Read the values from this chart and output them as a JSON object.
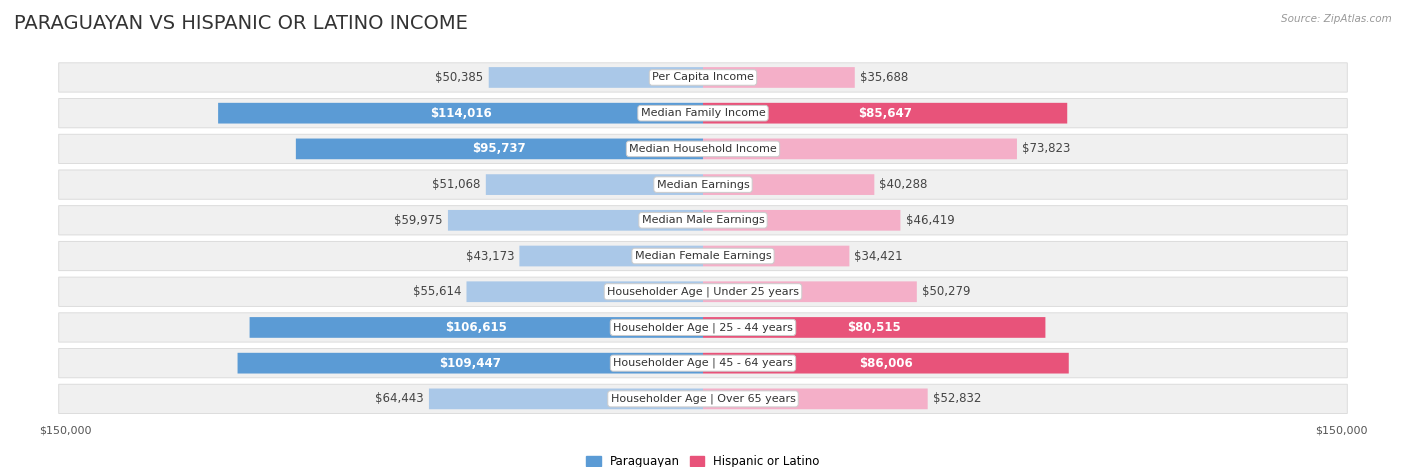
{
  "title": "PARAGUAYAN VS HISPANIC OR LATINO INCOME",
  "source": "Source: ZipAtlas.com",
  "categories": [
    "Per Capita Income",
    "Median Family Income",
    "Median Household Income",
    "Median Earnings",
    "Median Male Earnings",
    "Median Female Earnings",
    "Householder Age | Under 25 years",
    "Householder Age | 25 - 44 years",
    "Householder Age | 45 - 64 years",
    "Householder Age | Over 65 years"
  ],
  "paraguayan_values": [
    50385,
    114016,
    95737,
    51068,
    59975,
    43173,
    55614,
    106615,
    109447,
    64443
  ],
  "hispanic_values": [
    35688,
    85647,
    73823,
    40288,
    46419,
    34421,
    50279,
    80515,
    86006,
    52832
  ],
  "paraguayan_labels": [
    "$50,385",
    "$114,016",
    "$95,737",
    "$51,068",
    "$59,975",
    "$43,173",
    "$55,614",
    "$106,615",
    "$109,447",
    "$64,443"
  ],
  "hispanic_labels": [
    "$35,688",
    "$85,647",
    "$73,823",
    "$40,288",
    "$46,419",
    "$34,421",
    "$50,279",
    "$80,515",
    "$86,006",
    "$52,832"
  ],
  "paraguayan_color_light": "#aac8e8",
  "paraguayan_color_dark": "#5b9bd5",
  "hispanic_color_light": "#f4afc8",
  "hispanic_color_dark": "#e8537a",
  "label_inside_threshold": 75000,
  "max_value": 150000,
  "bar_height": 0.58,
  "row_bg_color": "#f0f0f0",
  "row_border_color": "#d8d8d8",
  "background_color": "#ffffff",
  "title_fontsize": 14,
  "label_fontsize": 8.5,
  "category_fontsize": 8,
  "legend_fontsize": 8.5,
  "axis_label_fontsize": 8
}
